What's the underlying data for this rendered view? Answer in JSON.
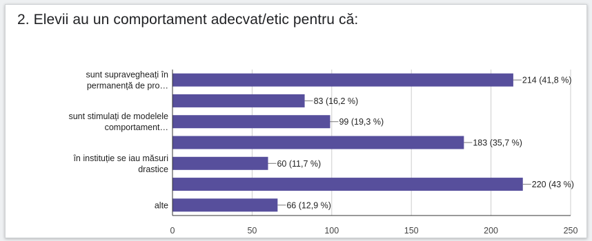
{
  "question": {
    "title": "2. Elevii au un comportament adecvat/etic pentru că:"
  },
  "chart_data": {
    "type": "bar",
    "orientation": "horizontal",
    "title": "2. Elevii au un comportament adecvat/etic pentru că:",
    "categories": [
      [
        "sunt supravegheați în",
        "permanență de pro…"
      ],
      [],
      [
        "sunt stimulați de modelele",
        "comportament…"
      ],
      [],
      [
        "în instituție se iau măsuri",
        "drastice"
      ],
      [],
      [
        "alte"
      ]
    ],
    "values": [
      214,
      83,
      99,
      183,
      60,
      220,
      66
    ],
    "data_labels": [
      "214 (41,8 %)",
      "83 (16,2 %)",
      "99 (19,3 %)",
      "183 (35,7 %)",
      "60 (11,7 %)",
      "220 (43 %)",
      "66 (12,9 %)"
    ],
    "x_ticks": [
      "0",
      "50",
      "100",
      "150",
      "200",
      "250"
    ],
    "xlim": [
      0,
      250
    ],
    "grid": true,
    "bar_color": "#574f9c"
  }
}
